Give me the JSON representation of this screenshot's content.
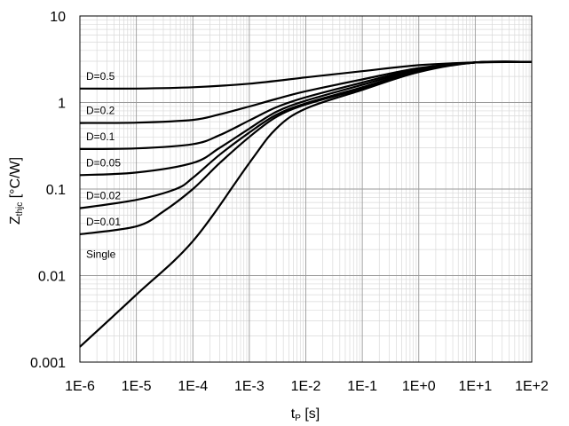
{
  "chart_data": {
    "type": "line",
    "x_scale": "log",
    "y_scale": "log",
    "xlim": [
      1e-06,
      100
    ],
    "ylim": [
      0.001,
      10
    ],
    "x_ticks": [
      1e-06,
      1e-05,
      0.0001,
      0.001,
      0.01,
      0.1,
      1,
      10,
      100
    ],
    "x_tick_labels": [
      "1E-6",
      "1E-5",
      "1E-4",
      "1E-3",
      "1E-2",
      "1E-1",
      "1E+0",
      "1E+1",
      "1E+2"
    ],
    "y_ticks": [
      0.001,
      0.01,
      0.1,
      1,
      10
    ],
    "y_tick_labels": [
      "0.001",
      "0.01",
      "0.1",
      "1",
      "10"
    ],
    "xlabel": {
      "main": "t",
      "sub": "P",
      "rest": " [s]"
    },
    "ylabel": {
      "main": "Z",
      "sub": "thjc",
      "rest": " [°C/W]"
    },
    "grid": "major and minor",
    "legend": "none (inline labels)",
    "series": [
      {
        "name": "D=0.5",
        "points": [
          [
            1e-06,
            1.45
          ],
          [
            1e-05,
            1.45
          ],
          [
            0.0001,
            1.5
          ],
          [
            0.001,
            1.65
          ],
          [
            0.01,
            1.95
          ],
          [
            0.1,
            2.3
          ],
          [
            1,
            2.7
          ],
          [
            10,
            2.9
          ],
          [
            100,
            2.95
          ]
        ]
      },
      {
        "name": "D=0.2",
        "points": [
          [
            1e-06,
            0.58
          ],
          [
            1e-05,
            0.585
          ],
          [
            0.0001,
            0.63
          ],
          [
            0.0003,
            0.73
          ],
          [
            0.001,
            0.9
          ],
          [
            0.003,
            1.1
          ],
          [
            0.01,
            1.35
          ],
          [
            0.1,
            1.85
          ],
          [
            1,
            2.5
          ],
          [
            10,
            2.9
          ],
          [
            100,
            2.95
          ]
        ]
      },
      {
        "name": "D=0.1",
        "points": [
          [
            1e-06,
            0.29
          ],
          [
            1e-05,
            0.295
          ],
          [
            0.0001,
            0.33
          ],
          [
            0.0003,
            0.42
          ],
          [
            0.001,
            0.62
          ],
          [
            0.003,
            0.88
          ],
          [
            0.01,
            1.15
          ],
          [
            0.1,
            1.7
          ],
          [
            1,
            2.45
          ],
          [
            10,
            2.9
          ],
          [
            100,
            2.95
          ]
        ]
      },
      {
        "name": "D=0.05",
        "points": [
          [
            1e-06,
            0.145
          ],
          [
            1e-05,
            0.155
          ],
          [
            0.0001,
            0.2
          ],
          [
            0.0003,
            0.3
          ],
          [
            0.001,
            0.5
          ],
          [
            0.003,
            0.78
          ],
          [
            0.01,
            1.05
          ],
          [
            0.1,
            1.6
          ],
          [
            1,
            2.4
          ],
          [
            10,
            2.9
          ],
          [
            100,
            2.95
          ]
        ]
      },
      {
        "name": "D=0.02",
        "points": [
          [
            1e-06,
            0.06
          ],
          [
            1e-05,
            0.075
          ],
          [
            5e-05,
            0.1
          ],
          [
            0.0001,
            0.135
          ],
          [
            0.0003,
            0.25
          ],
          [
            0.001,
            0.45
          ],
          [
            0.003,
            0.72
          ],
          [
            0.01,
            0.98
          ],
          [
            0.1,
            1.5
          ],
          [
            1,
            2.35
          ],
          [
            10,
            2.9
          ],
          [
            100,
            2.95
          ]
        ]
      },
      {
        "name": "D=0.01",
        "points": [
          [
            1e-06,
            0.03
          ],
          [
            1e-05,
            0.037
          ],
          [
            3e-05,
            0.055
          ],
          [
            0.0001,
            0.1
          ],
          [
            0.0003,
            0.2
          ],
          [
            0.001,
            0.4
          ],
          [
            0.003,
            0.68
          ],
          [
            0.01,
            0.95
          ],
          [
            0.1,
            1.45
          ],
          [
            1,
            2.3
          ],
          [
            10,
            2.9
          ],
          [
            100,
            2.95
          ]
        ]
      },
      {
        "name": "Single",
        "points": [
          [
            1e-06,
            0.0015
          ],
          [
            1e-05,
            0.006
          ],
          [
            0.0001,
            0.025
          ],
          [
            0.001,
            0.2
          ],
          [
            0.003,
            0.5
          ],
          [
            0.01,
            0.85
          ],
          [
            0.1,
            1.4
          ],
          [
            1,
            2.25
          ],
          [
            10,
            2.9
          ],
          [
            100,
            2.95
          ]
        ]
      }
    ]
  }
}
